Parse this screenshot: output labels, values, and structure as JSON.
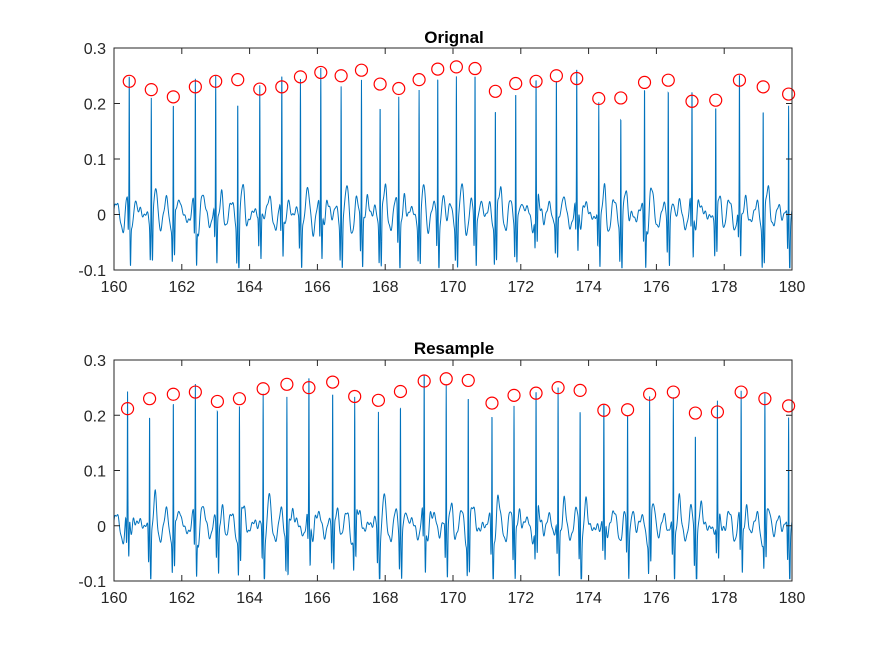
{
  "colors": {
    "signal": "#0072BD",
    "peak_marker": "#FF0000",
    "axes": "#262626"
  },
  "chart_data": [
    {
      "type": "line",
      "title": "Orignal",
      "xlabel": "",
      "ylabel": "",
      "xlim": [
        160,
        180
      ],
      "ylim": [
        -0.1,
        0.3
      ],
      "xticks": [
        "160",
        "162",
        "164",
        "166",
        "168",
        "170",
        "172",
        "174",
        "176",
        "178",
        "180"
      ],
      "yticks": [
        "-0.1",
        "0",
        "0.1",
        "0.2",
        "0.3"
      ],
      "grid": false,
      "legend": "none",
      "peaks": {
        "x": [
          160.45,
          161.1,
          161.75,
          162.4,
          163.0,
          163.65,
          164.3,
          164.95,
          165.5,
          166.1,
          166.7,
          167.3,
          167.85,
          168.4,
          169.0,
          169.55,
          170.1,
          170.65,
          171.25,
          171.85,
          172.45,
          173.05,
          173.65,
          174.3,
          174.95,
          175.65,
          176.35,
          177.05,
          177.75,
          178.45,
          179.15,
          179.9
        ],
        "y": [
          0.24,
          0.225,
          0.212,
          0.23,
          0.24,
          0.243,
          0.226,
          0.23,
          0.248,
          0.256,
          0.25,
          0.26,
          0.235,
          0.227,
          0.243,
          0.262,
          0.266,
          0.263,
          0.222,
          0.236,
          0.24,
          0.25,
          0.245,
          0.209,
          0.21,
          0.238,
          0.242,
          0.204,
          0.206,
          0.242,
          0.23,
          0.217
        ]
      }
    },
    {
      "type": "line",
      "title": "Resample",
      "xlabel": "",
      "ylabel": "",
      "xlim": [
        160,
        180
      ],
      "ylim": [
        -0.1,
        0.3
      ],
      "xticks": [
        "160",
        "162",
        "164",
        "166",
        "168",
        "170",
        "172",
        "174",
        "176",
        "178",
        "180"
      ],
      "yticks": [
        "-0.1",
        "0",
        "0.1",
        "0.2",
        "0.3"
      ],
      "grid": false,
      "legend": "none",
      "peaks": {
        "x": [
          160.4,
          161.05,
          161.75,
          162.4,
          163.05,
          163.7,
          164.4,
          165.1,
          165.75,
          166.45,
          167.1,
          167.8,
          168.45,
          169.15,
          169.8,
          170.45,
          171.15,
          171.8,
          172.45,
          173.1,
          173.75,
          174.45,
          175.15,
          175.8,
          176.5,
          177.15,
          177.8,
          178.5,
          179.2,
          179.9
        ],
        "y": [
          0.212,
          0.23,
          0.238,
          0.242,
          0.225,
          0.23,
          0.248,
          0.256,
          0.25,
          0.26,
          0.234,
          0.227,
          0.243,
          0.262,
          0.266,
          0.263,
          0.222,
          0.236,
          0.24,
          0.25,
          0.245,
          0.209,
          0.21,
          0.238,
          0.242,
          0.204,
          0.206,
          0.242,
          0.23,
          0.217
        ]
      }
    }
  ]
}
